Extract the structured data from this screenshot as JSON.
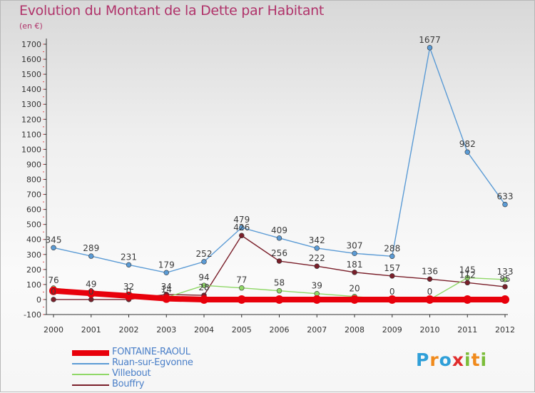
{
  "title": "Evolution du Montant de la Dette par Habitant",
  "unit": "(en €)",
  "brand": "Proxiti",
  "chart_data": {
    "type": "line",
    "title": "Evolution du Montant de la Dette par Habitant",
    "ylabel": "(en €)",
    "xlabel": "",
    "x": [
      2000,
      2001,
      2002,
      2003,
      2004,
      2005,
      2006,
      2007,
      2008,
      2009,
      2010,
      2011,
      2012
    ],
    "ylim": [
      -100,
      1700
    ],
    "yticks": [
      -100,
      0,
      100,
      200,
      300,
      400,
      500,
      600,
      700,
      800,
      900,
      1000,
      1100,
      1200,
      1300,
      1400,
      1500,
      1600,
      1700
    ],
    "grid": false,
    "legend_position": "bottom",
    "series": [
      {
        "name": "FONTAINE-RAOUL",
        "color": "#e8000b",
        "values": [
          58,
          41,
          24,
          6,
          0,
          0,
          0,
          0,
          0,
          0,
          0,
          0,
          0
        ],
        "labels_shown": false
      },
      {
        "name": "Ruan-sur-Egvonne",
        "color": "#5b9bd5",
        "values": [
          345,
          289,
          231,
          179,
          252,
          479,
          409,
          342,
          307,
          288,
          1677,
          982,
          633
        ],
        "labels_shown": true
      },
      {
        "name": "Villebout",
        "color": "#90d868",
        "values": [
          76,
          49,
          32,
          14,
          94,
          77,
          58,
          39,
          20,
          0,
          0,
          145,
          133
        ],
        "labels_shown": true
      },
      {
        "name": "Bouffry",
        "color": "#7a1f2a",
        "values": [
          0,
          0,
          0,
          34,
          28,
          426,
          256,
          222,
          181,
          157,
          136,
          112,
          85
        ],
        "labels_shown": true
      }
    ]
  }
}
